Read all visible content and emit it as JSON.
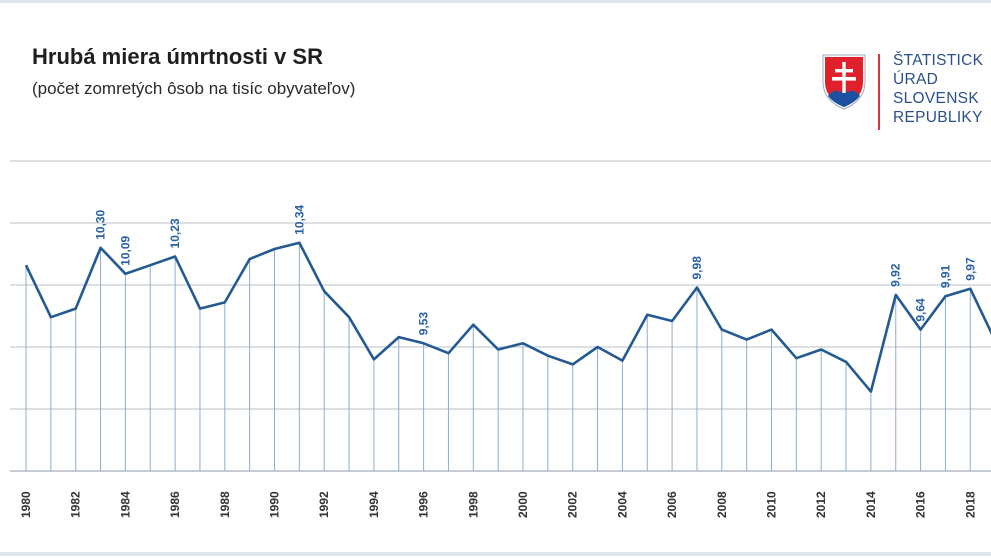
{
  "title": "Hrubá miera úmrtnosti v SR",
  "subtitle": "(počet zomretých ôsob na tisíc obyvateľov)",
  "logo": {
    "lines": [
      "ŠTATISTICK",
      "ÚRAD",
      "SLOVENSK",
      "REPUBLIKY"
    ],
    "icon": "slovak-coat-of-arms-icon"
  },
  "colors": {
    "line": "#245a92",
    "label": "#2b62a4",
    "grid": "#c7ccd2",
    "drop": "#8faecb",
    "frame": "#dfe5ea"
  },
  "chart_data": {
    "type": "line",
    "title": "Hrubá miera úmrtnosti v SR",
    "subtitle": "(počet zomretých ôsob na tisíc obyvateľov)",
    "xlabel": "",
    "ylabel": "",
    "ylim": [
      8.5,
      11.0
    ],
    "grid": true,
    "x": [
      1980,
      1981,
      1982,
      1983,
      1984,
      1985,
      1986,
      1987,
      1988,
      1989,
      1990,
      1991,
      1992,
      1993,
      1994,
      1995,
      1996,
      1997,
      1998,
      1999,
      2000,
      2001,
      2002,
      2003,
      2004,
      2005,
      2006,
      2007,
      2008,
      2009,
      2010,
      2011,
      2012,
      2013,
      2014,
      2015,
      2016,
      2017,
      2018,
      2019
    ],
    "values": [
      10.16,
      9.74,
      9.81,
      10.3,
      10.09,
      10.16,
      10.23,
      9.81,
      9.86,
      10.21,
      10.29,
      10.34,
      9.95,
      9.74,
      9.4,
      9.58,
      9.53,
      9.45,
      9.68,
      9.48,
      9.53,
      9.43,
      9.36,
      9.5,
      9.39,
      9.76,
      9.71,
      9.98,
      9.64,
      9.56,
      9.64,
      9.41,
      9.48,
      9.38,
      9.14,
      9.92,
      9.64,
      9.91,
      9.97,
      9.55
    ],
    "tick_labels": [
      "1980",
      "1982",
      "1984",
      "1986",
      "1988",
      "1990",
      "1992",
      "1994",
      "1996",
      "1998",
      "2000",
      "2002",
      "2004",
      "2006",
      "2008",
      "2010",
      "2012",
      "2014",
      "2016",
      "2018"
    ],
    "data_labels": [
      {
        "year": 1983,
        "text": "10,30"
      },
      {
        "year": 1984,
        "text": "10,09"
      },
      {
        "year": 1986,
        "text": "10,23"
      },
      {
        "year": 1991,
        "text": "10,34"
      },
      {
        "year": 1996,
        "text": "9,53"
      },
      {
        "year": 2007,
        "text": "9,98"
      },
      {
        "year": 2015,
        "text": "9,92"
      },
      {
        "year": 2016,
        "text": "9,64"
      },
      {
        "year": 2017,
        "text": "9,91"
      },
      {
        "year": 2018,
        "text": "9,97"
      }
    ]
  }
}
